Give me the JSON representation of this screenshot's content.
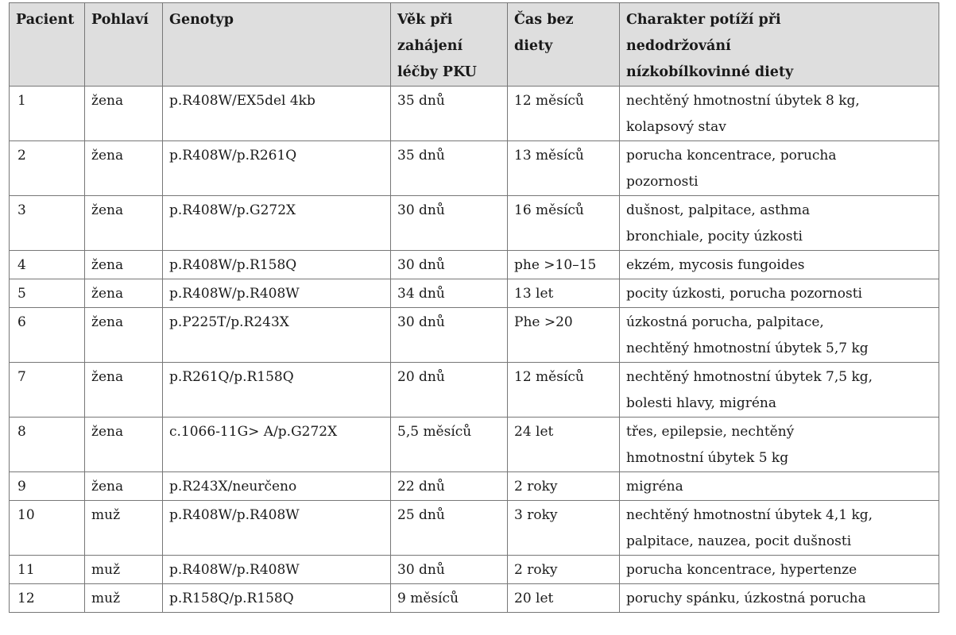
{
  "table": {
    "headers": [
      "Pacient",
      "Pohlaví",
      "Genotyp",
      "Věk při\nzahájení\nléčby PKU",
      "Čas bez\ndiety",
      "Charakter potíží při\nnedodržování\nnízkobílkovinné diety"
    ],
    "rows": [
      [
        "1",
        "žena",
        "p.R408W/EX5del 4kb",
        "35 dnů",
        "12 měsíců",
        "nechtěný hmotnostní úbytek 8 kg,\nkolapsový stav"
      ],
      [
        "2",
        "žena",
        "p.R408W/p.R261Q",
        "35 dnů",
        "13 měsíců",
        "porucha koncentrace, porucha\npozornosti"
      ],
      [
        "3",
        "žena",
        "p.R408W/p.G272X",
        "30 dnů",
        "16 měsíců",
        "dušnost, palpitace, asthma\nbronchiale, pocity úzkosti"
      ],
      [
        "4",
        "žena",
        "p.R408W/p.R158Q",
        "30 dnů",
        "phe >10–15",
        "ekzém, mycosis fungoides"
      ],
      [
        "5",
        "žena",
        "p.R408W/p.R408W",
        "34 dnů",
        "13 let",
        "pocity úzkosti, porucha pozornosti"
      ],
      [
        "6",
        "žena",
        "p.P225T/p.R243X",
        "30 dnů",
        "Phe >20",
        "úzkostná porucha, palpitace,\nnechtěný hmotnostní úbytek 5,7 kg"
      ],
      [
        "7",
        "žena",
        "p.R261Q/p.R158Q",
        "20 dnů",
        "12 měsíců",
        "nechtěný hmotnostní úbytek 7,5 kg,\nbolesti hlavy, migréna"
      ],
      [
        "8",
        "žena",
        "c.1066-11G> A/p.G272X",
        "5,5 měsíců",
        "24 let",
        "třes, epilepsie, nechtěný\nhmotnostní úbytek 5 kg"
      ],
      [
        "9",
        "žena",
        "p.R243X/neurčeno",
        "22 dnů",
        "2 roky",
        "migréna"
      ],
      [
        "10",
        "muž",
        "p.R408W/p.R408W",
        "25 dnů",
        "3 roky",
        "nechtěný hmotnostní úbytek 4,1 kg,\npalpitace, nauzea, pocit dušnosti"
      ],
      [
        "11",
        "muž",
        "p.R408W/p.R408W",
        "30 dnů",
        "2 roky",
        "porucha koncentrace, hypertenze"
      ],
      [
        "12",
        "muž",
        "p.R158Q/p.R158Q",
        "9 měsíců",
        "20 let",
        "poruchy spánku, úzkostná porucha"
      ]
    ]
  },
  "colors": {
    "header_background": "#dedede",
    "border": "#777777",
    "text": "#1a1a1a"
  }
}
